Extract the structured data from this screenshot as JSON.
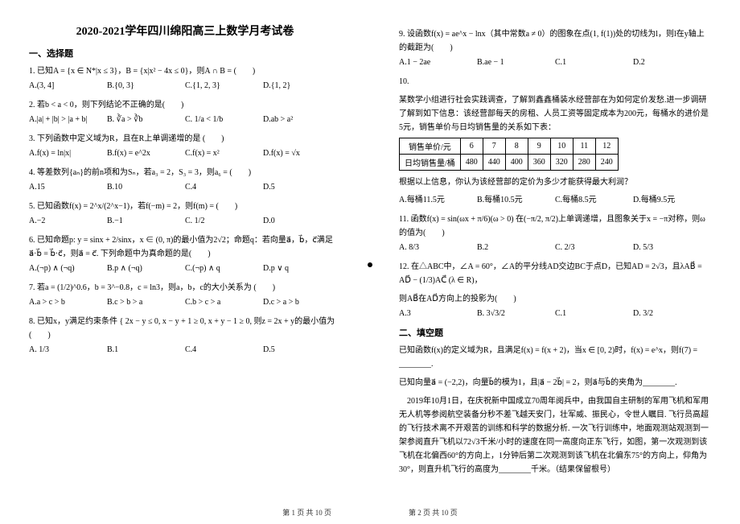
{
  "title": "2020-2021学年四川绵阳高三上数学月考试卷",
  "section1": "一、选择题",
  "section2": "二、填空题",
  "q1": {
    "stem": "1. 已知A = {x ∈ N*|x ≤ 3}，B = {x|x² − 4x ≤ 0}，则A ∩ B = (　　)",
    "a": "A.(3, 4]",
    "b": "B.{0, 3}",
    "c": "C.{1, 2, 3}",
    "d": "D.{1, 2}"
  },
  "q2": {
    "stem": "2. 若b < a < 0，则下列结论不正确的是(　　)",
    "a": "A.|a| + |b| > |a + b|",
    "b": "B. ∛a > ∛b",
    "c": "C. 1/a < 1/b",
    "d": "D.ab > a²"
  },
  "q3": {
    "stem": "3. 下列函数中定义域为R，且在R上单调递增的是 (　　)",
    "a": "A.f(x) = ln|x|",
    "b": "B.f(x) = e^2x",
    "c": "C.f(x) = x²",
    "d": "D.f(x) = √x"
  },
  "q4": {
    "stem": "4. 等差数列{aₙ}的前n项和为Sₙ，若a₃ = 2，S₃ = 3，则a₆ = (　　)",
    "a": "A.15",
    "b": "B.10",
    "c": "C.4",
    "d": "D.5"
  },
  "q5": {
    "stem": "5. 已知函数f(x) = 2^x/(2^x−1)，若f(−m) = 2，则f(m) = (　　)",
    "a": "A.−2",
    "b": "B.−1",
    "c": "C. 1/2",
    "d": "D.0"
  },
  "q6": {
    "stem": "6. 已知命题p: y = sinx + 2/sinx，x ∈ (0, π)的最小值为2√2；命题q：若向量a⃗，b⃗，c⃗满足a⃗·b⃗ = b⃗·c⃗，则a⃗ = c⃗. 下列命题中为真命题的是(　　)",
    "a": "A.(¬p) ∧ (¬q)",
    "b": "B.p ∧ (¬q)",
    "c": "C.(¬p) ∧ q",
    "d": "D.p ∨ q"
  },
  "q7": {
    "stem": "7. 若a = (1/2)^0.6，b = 3^−0.8，c = ln3，则a，b，c的大小关系为 (　　)",
    "a": "A.a > c > b",
    "b": "B.c > b > a",
    "c": "C.b > c > a",
    "d": "D.c > a > b"
  },
  "q8": {
    "stem": "8. 已知x，y满足约束条件 { 2x − y ≤ 0, x − y + 1 ≥ 0, x + y − 1 ≥ 0, 则z = 2x + y的最小值为(　　)",
    "a": "A. 1/3",
    "b": "B.1",
    "c": "C.4",
    "d": "D.5"
  },
  "q9": {
    "stem": "9. 设函数f(x) = ae^x − lnx（其中常数a ≠ 0）的图象在点(1, f(1))处的切线为l，则l在y轴上的截距为(　　)",
    "a": "A.1 − 2ae",
    "b": "B.ae − 1",
    "c": "C.1",
    "d": "D.2"
  },
  "q10": {
    "num": "10.",
    "p1": "某数学小组进行社会实践调查，了解到鑫鑫桶装水经营部在为如何定价发愁.进一步调研了解到如下信息：该经营部每天的房租、人员工资等固定成本为200元，每桶水的进价是5元，销售单价与日均销售量的关系如下表：",
    "p2": "根据以上信息，你认为该经营部的定价为多少才能获得最大利润？",
    "a": "A.每桶11.5元",
    "b": "B.每桶10.5元",
    "c": "C.每桶8.5元",
    "d": "D.每桶9.5元"
  },
  "table": {
    "h1": "销售单价/元",
    "r1": [
      "6",
      "7",
      "8",
      "9",
      "10",
      "11",
      "12"
    ],
    "h2": "日均销售量/桶",
    "r2": [
      "480",
      "440",
      "400",
      "360",
      "320",
      "280",
      "240"
    ]
  },
  "q11": {
    "stem": "11. 函数f(x) = sin(ωx + π/6)(ω > 0) 在(−π/2, π/2)上单调递增，且图象关于x = −π对称，则ω的值为(　　)",
    "a": "A. 8/3",
    "b": "B.2",
    "c": "C. 2/3",
    "d": "D. 5/3"
  },
  "q12": {
    "stem": "12. 在△ABC中，∠A = 60°，∠A的平分线AD交边BC于点D，已知AD = 2√3，且λAB⃗ = AD⃗ − (1/3)AC⃗ (λ ∈ R)，",
    "stem2": "则AB⃗在AD⃗方向上的投影为(　　)",
    "a": "A.3",
    "b": "B. 3√3/2",
    "c": "C.1",
    "d": "D. 3/2"
  },
  "fill1": "已知函数f(x)的定义域为R，且满足f(x) = f(x + 2)，当x ∈ [0, 2)时，f(x) = e^x，则f(7) = ________.",
  "fill2": "已知向量a⃗ = (−2,2)，向量b⃗的模为1，且|a⃗ − 2b⃗| = 2，则a⃗与b⃗的夹角为________.",
  "fill3": "　2019年10月1日，在庆祝新中国成立70周年阅兵中，由我国自主研制的军用飞机和军用无人机等参阅航空装备分秒不差飞越天安门，壮军威、振民心，令世人瞩目. 飞行员高超的飞行技术离不开艰苦的训练和科学的数据分析. 一次飞行训练中，地面观测站观测到一架参阅直升飞机以72√3千米/小时的速度在同一高度向正东飞行，如图，第一次观测到该飞机在北偏西60°的方向上，1分钟后第二次观测到该飞机在北偏东75°的方向上，仰角为30°，则直升机飞行的高度为________千米。（结果保留根号）",
  "footer1": "第 1 页 共 10 页",
  "footer2": "第 2 页 共 10 页"
}
